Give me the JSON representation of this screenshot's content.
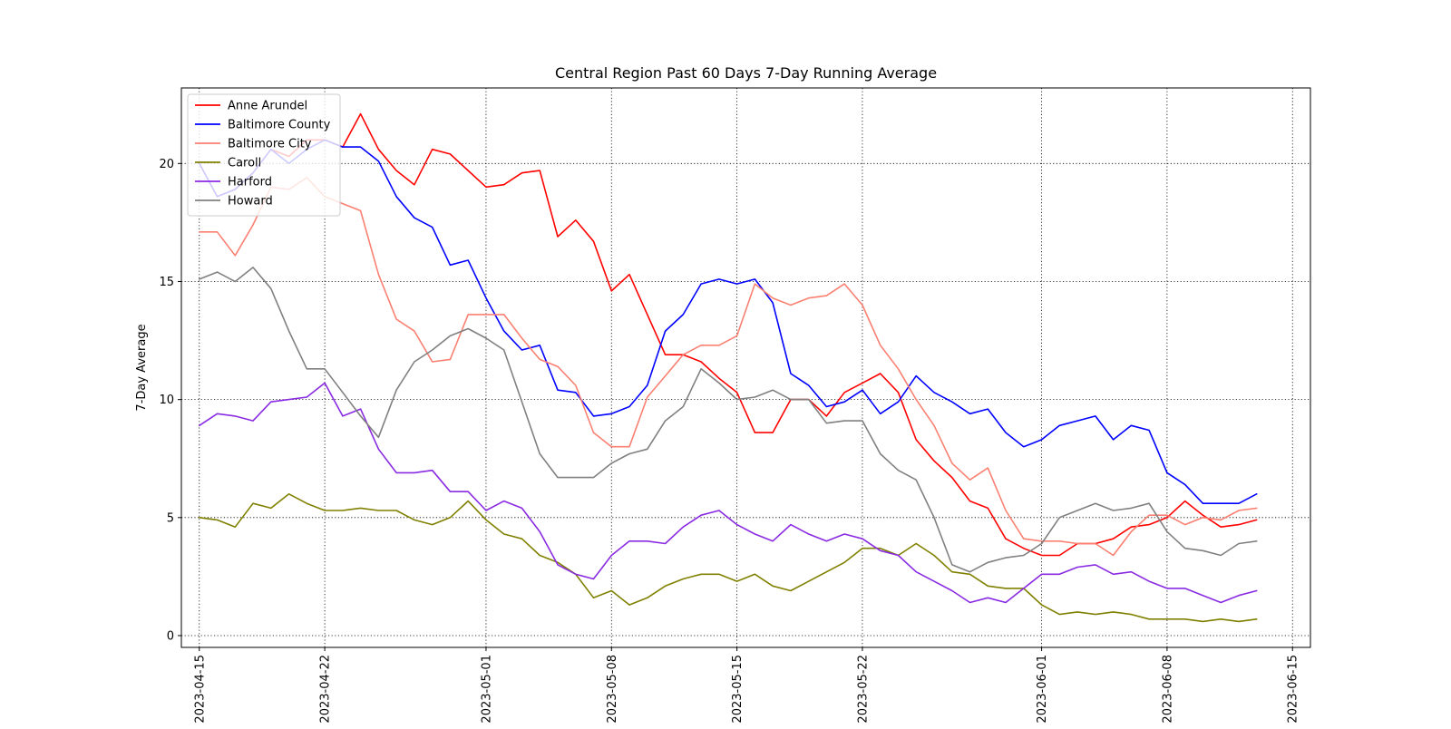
{
  "chart_data": {
    "type": "line",
    "title": "Central Region Past 60 Days 7-Day Running Average",
    "xlabel": "",
    "ylabel": "7-Day Average",
    "xlim": [
      "2023-04-14",
      "2023-06-16"
    ],
    "ylim": [
      -0.5,
      23.2
    ],
    "grid": true,
    "grid_style": "dotted",
    "legend_position": "upper-left",
    "x_ticks": [
      "2023-04-15",
      "2023-04-22",
      "2023-05-01",
      "2023-05-08",
      "2023-05-15",
      "2023-05-22",
      "2023-06-01",
      "2023-06-08",
      "2023-06-15"
    ],
    "y_ticks": [
      0,
      5,
      10,
      15,
      20
    ],
    "x_start": "2023-04-15",
    "x_end": "2023-06-13",
    "series": [
      {
        "name": "Anne Arundel",
        "color": "#ff0000",
        "values": [
          20.0,
          18.6,
          18.9,
          19.6,
          20.6,
          20.3,
          21.0,
          21.0,
          20.7,
          22.1,
          20.6,
          19.7,
          19.1,
          20.6,
          20.4,
          19.7,
          19.0,
          19.1,
          19.6,
          19.7,
          16.9,
          17.6,
          16.7,
          14.6,
          15.3,
          13.6,
          11.9,
          11.9,
          11.6,
          10.9,
          10.3,
          8.6,
          8.6,
          10.0,
          10.0,
          9.3,
          10.3,
          10.7,
          11.1,
          10.3,
          8.3,
          7.4,
          6.7,
          5.7,
          5.4,
          4.1,
          3.7,
          3.4,
          3.4,
          3.9,
          3.9,
          4.1,
          4.6,
          4.7,
          5.0,
          5.7,
          5.1,
          4.6,
          4.7,
          4.9
        ]
      },
      {
        "name": "Baltimore County",
        "color": "#0000ff",
        "values": [
          20.0,
          18.6,
          18.9,
          19.6,
          20.6,
          20.0,
          20.6,
          21.0,
          20.7,
          20.7,
          20.1,
          18.6,
          17.7,
          17.3,
          15.7,
          15.9,
          14.3,
          12.9,
          12.1,
          12.3,
          10.4,
          10.3,
          9.3,
          9.4,
          9.7,
          10.6,
          12.9,
          13.6,
          14.9,
          15.1,
          14.9,
          15.1,
          14.1,
          11.1,
          10.6,
          9.7,
          9.9,
          10.4,
          9.4,
          9.9,
          11.0,
          10.3,
          9.9,
          9.4,
          9.6,
          8.6,
          8.0,
          8.3,
          8.9,
          9.1,
          9.3,
          8.3,
          8.9,
          8.7,
          6.9,
          6.4,
          5.6,
          5.6,
          5.6,
          6.0
        ]
      },
      {
        "name": "Baltimore City",
        "color": "#fa8072",
        "values": [
          17.1,
          17.1,
          16.1,
          17.4,
          19.0,
          18.9,
          19.4,
          18.6,
          18.3,
          18.0,
          15.3,
          13.4,
          12.9,
          11.6,
          11.7,
          13.6,
          13.6,
          13.6,
          12.6,
          11.7,
          11.4,
          10.6,
          8.6,
          8.0,
          8.0,
          10.1,
          11.0,
          11.9,
          12.3,
          12.3,
          12.7,
          14.9,
          14.3,
          14.0,
          14.3,
          14.4,
          14.9,
          14.0,
          12.3,
          11.3,
          10.0,
          8.9,
          7.3,
          6.6,
          7.1,
          5.3,
          4.1,
          4.0,
          4.0,
          3.9,
          3.9,
          3.4,
          4.4,
          5.1,
          5.1,
          4.7,
          5.0,
          4.9,
          5.3,
          5.4
        ]
      },
      {
        "name": "Caroll",
        "color": "#808000",
        "values": [
          5.0,
          4.9,
          4.6,
          5.6,
          5.4,
          6.0,
          5.6,
          5.3,
          5.3,
          5.4,
          5.3,
          5.3,
          4.9,
          4.7,
          5.0,
          5.7,
          4.9,
          4.3,
          4.1,
          3.4,
          3.1,
          2.6,
          1.6,
          1.9,
          1.3,
          1.6,
          2.1,
          2.4,
          2.6,
          2.6,
          2.3,
          2.6,
          2.1,
          1.9,
          2.3,
          2.7,
          3.1,
          3.7,
          3.7,
          3.4,
          3.9,
          3.4,
          2.7,
          2.6,
          2.1,
          2.0,
          2.0,
          1.3,
          0.9,
          1.0,
          0.9,
          1.0,
          0.9,
          0.7,
          0.7,
          0.7,
          0.6,
          0.7,
          0.6,
          0.7
        ]
      },
      {
        "name": "Harford",
        "color": "#8a2be2",
        "values": [
          8.9,
          9.4,
          9.3,
          9.1,
          9.9,
          10.0,
          10.1,
          10.7,
          9.3,
          9.6,
          7.9,
          6.9,
          6.9,
          7.0,
          6.1,
          6.1,
          5.3,
          5.7,
          5.4,
          4.4,
          3.0,
          2.6,
          2.4,
          3.4,
          4.0,
          4.0,
          3.9,
          4.6,
          5.1,
          5.3,
          4.7,
          4.3,
          4.0,
          4.7,
          4.3,
          4.0,
          4.3,
          4.1,
          3.6,
          3.4,
          2.7,
          2.3,
          1.9,
          1.4,
          1.6,
          1.4,
          2.0,
          2.6,
          2.6,
          2.9,
          3.0,
          2.6,
          2.7,
          2.3,
          2.0,
          2.0,
          1.7,
          1.4,
          1.7,
          1.9
        ]
      },
      {
        "name": "Howard",
        "color": "#808080",
        "values": [
          15.1,
          15.4,
          15.0,
          15.6,
          14.7,
          12.9,
          11.3,
          11.3,
          10.3,
          9.3,
          8.4,
          10.4,
          11.6,
          12.1,
          12.7,
          13.0,
          12.6,
          12.1,
          9.9,
          7.7,
          6.7,
          6.7,
          6.7,
          7.3,
          7.7,
          7.9,
          9.1,
          9.7,
          11.3,
          10.7,
          10.0,
          10.1,
          10.4,
          10.0,
          10.0,
          9.0,
          9.1,
          9.1,
          7.7,
          7.0,
          6.6,
          5.0,
          3.0,
          2.7,
          3.1,
          3.3,
          3.4,
          3.9,
          5.0,
          5.3,
          5.6,
          5.3,
          5.4,
          5.6,
          4.4,
          3.7,
          3.6,
          3.4,
          3.9,
          4.0
        ]
      }
    ]
  }
}
